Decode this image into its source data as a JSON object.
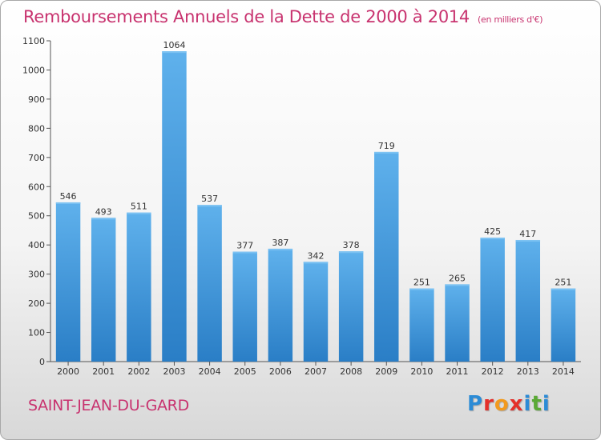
{
  "chart_data": {
    "type": "bar",
    "title": "Remboursements Annuels de la Dette de 2000 à 2014",
    "subtitle": "(en milliers d'€)",
    "xlabel": "",
    "ylabel": "",
    "categories": [
      "2000",
      "2001",
      "2002",
      "2003",
      "2004",
      "2005",
      "2006",
      "2007",
      "2008",
      "2009",
      "2010",
      "2011",
      "2012",
      "2013",
      "2014"
    ],
    "values": [
      546,
      493,
      511,
      1064,
      537,
      377,
      387,
      342,
      378,
      719,
      251,
      265,
      425,
      417,
      251
    ],
    "value_labels": [
      "546",
      "493",
      "511",
      "1064",
      "537",
      "377",
      "387",
      "342",
      "378",
      "719",
      "251",
      "265",
      "425",
      "417",
      "251"
    ],
    "ylim": [
      0,
      1100
    ],
    "yticks": [
      0,
      100,
      200,
      300,
      400,
      500,
      600,
      700,
      800,
      900,
      1000,
      1100
    ],
    "grid": false,
    "legend": "none"
  },
  "commune": "SAINT-JEAN-DU-GARD",
  "logo": {
    "letters": [
      "P",
      "r",
      "o",
      "x",
      "i",
      "t",
      "i"
    ]
  },
  "colors": {
    "accent": "#c8336f",
    "bar_top": "#5fb1ec",
    "bar_bottom": "#2a7ec6",
    "axis": "#555555"
  }
}
